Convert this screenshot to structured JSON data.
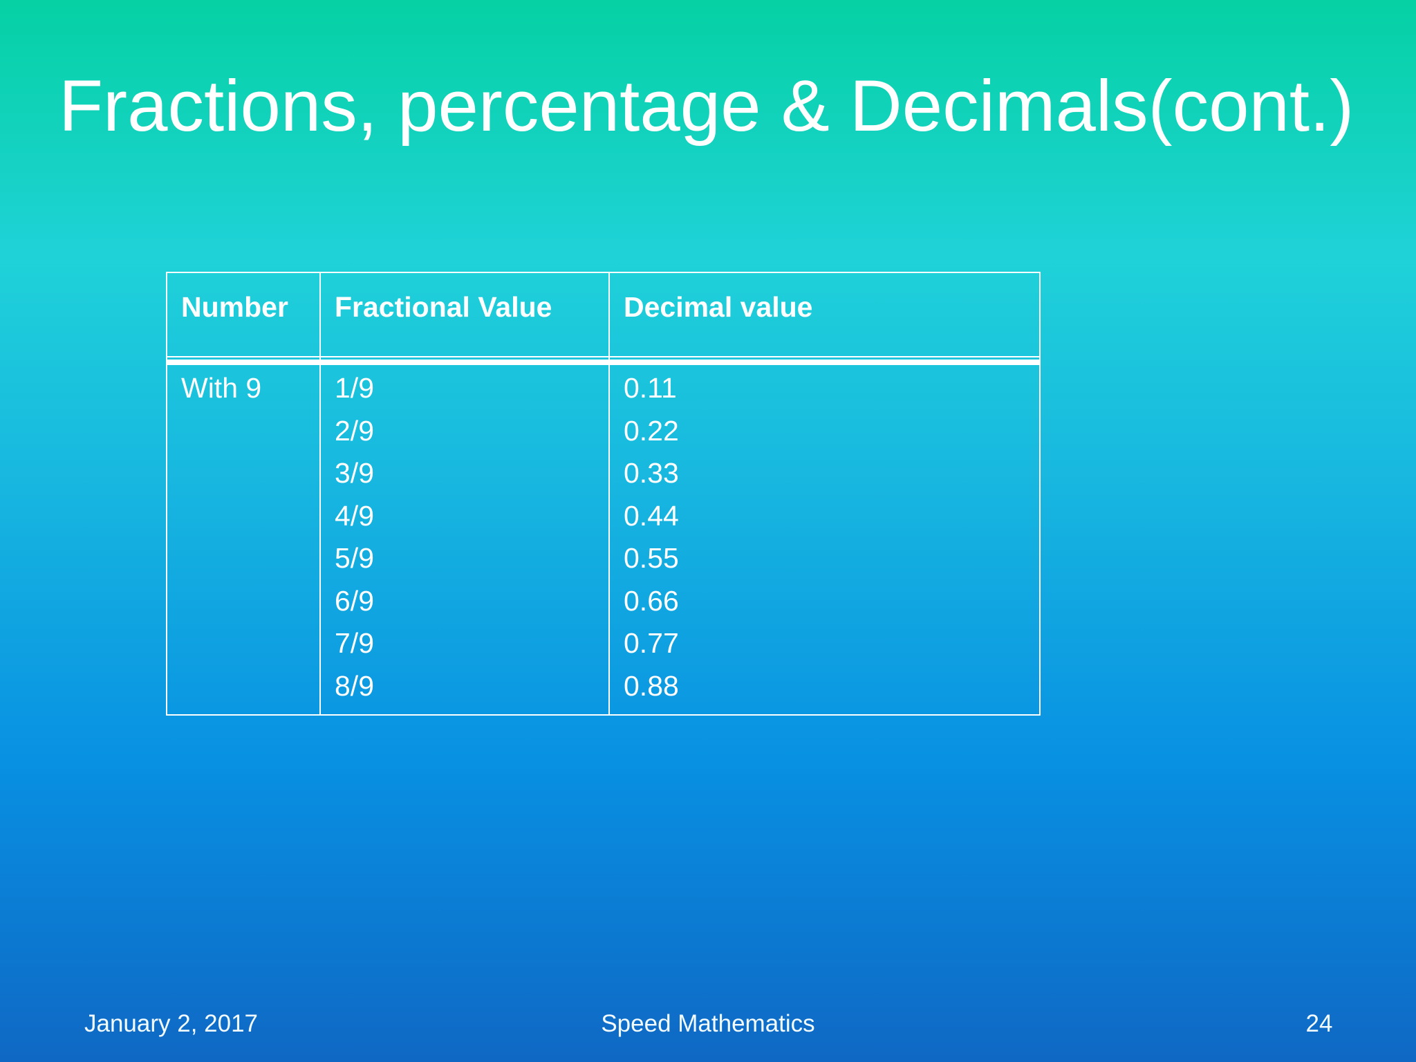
{
  "slide": {
    "title": "Fractions, percentage & Decimals(cont.)"
  },
  "table": {
    "headers": [
      "Number",
      "Fractional Value",
      "Decimal value"
    ],
    "rows": [
      {
        "number": "With 9",
        "fractional_values": [
          "1/9",
          "2/9",
          "3/9",
          "4/9",
          "5/9",
          "6/9",
          "7/9",
          "8/9"
        ],
        "decimal_values": [
          "0.11",
          "0.22",
          "0.33",
          "0.44",
          "0.55",
          "0.66",
          "0.77",
          "0.88"
        ]
      }
    ]
  },
  "footer": {
    "date": "January 2, 2017",
    "center_title": "Speed Mathematics",
    "page_number": "24"
  },
  "colors": {
    "gradient_top": "#05d1a4",
    "gradient_upper_mid": "#1fd2d8",
    "gradient_mid": "#17b6e0",
    "gradient_lower_mid": "#0890e2",
    "gradient_bottom": "#0f68c4",
    "text": "#ffffff",
    "table_border": "#ffffff"
  }
}
